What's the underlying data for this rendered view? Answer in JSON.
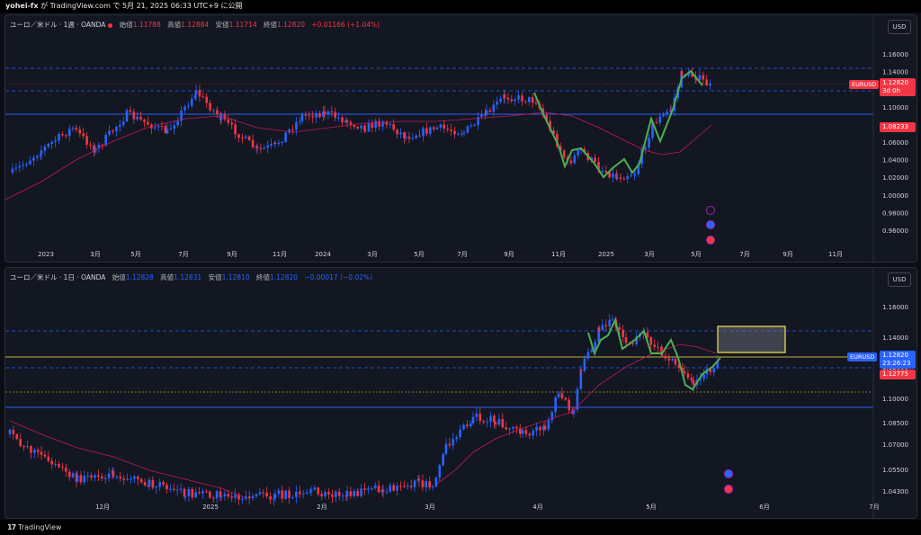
{
  "topbar": {
    "user": "yohei-fx",
    "rest": " が TradingView.com で 5月 21, 2025 06:33 UTC+9 に公開"
  },
  "pane1": {
    "symbol": "ユーロ／米ドル · 1週 · OANDA",
    "open_label": "始値",
    "open": "1.11788",
    "high_label": "高値",
    "high": "1.12884",
    "low_label": "安値",
    "low": "1.11714",
    "close_label": "終値",
    "close": "1.12820",
    "change": "+0.01166 (+1.04%)",
    "currency": "USD",
    "price_ticks": [
      "1.16000",
      "1.14000",
      "1.12000",
      "1.10000",
      "1.08000",
      "1.06000",
      "1.04000",
      "1.02000",
      "1.00000",
      "0.98000",
      "0.96000"
    ],
    "time_ticks": [
      "2023",
      "3月",
      "5月",
      "7月",
      "9月",
      "11月",
      "2024",
      "3月",
      "5月",
      "7月",
      "9月",
      "11月",
      "2025",
      "3月",
      "5月",
      "7月",
      "9月",
      "11月"
    ],
    "tag_symbol": "EURUSD",
    "tag_price": "1.12820",
    "tag_countdown": "3d 0h",
    "tag_ma": "1.08233",
    "colors": {
      "up": "#2962ff",
      "down": "#f23645",
      "ma": "#c2185b",
      "pattern": "#4caf50"
    }
  },
  "pane2": {
    "symbol": "ユーロ／米ドル · 1日 · OANDA",
    "open_label": "始値",
    "open": "1.12828",
    "high_label": "高値",
    "high": "1.12831",
    "low_label": "安値",
    "low": "1.12810",
    "close_label": "終値",
    "close": "1.12820",
    "change": "−0.00017 (−0.02%)",
    "currency": "USD",
    "price_ticks": [
      "1.16000",
      "1.14000",
      "1.12000",
      "1.10000",
      "1.08500",
      "1.07000",
      "1.05500",
      "1.04300"
    ],
    "time_ticks": [
      "12月",
      "2025",
      "2月",
      "3月",
      "4月",
      "5月",
      "6月",
      "7月"
    ],
    "tag_symbol": "EURUSD",
    "tag_price": "1.12820",
    "tag_countdown": "23:26:23",
    "tag_ma": "1.12775"
  },
  "footer": {
    "brand": "TradingView"
  }
}
